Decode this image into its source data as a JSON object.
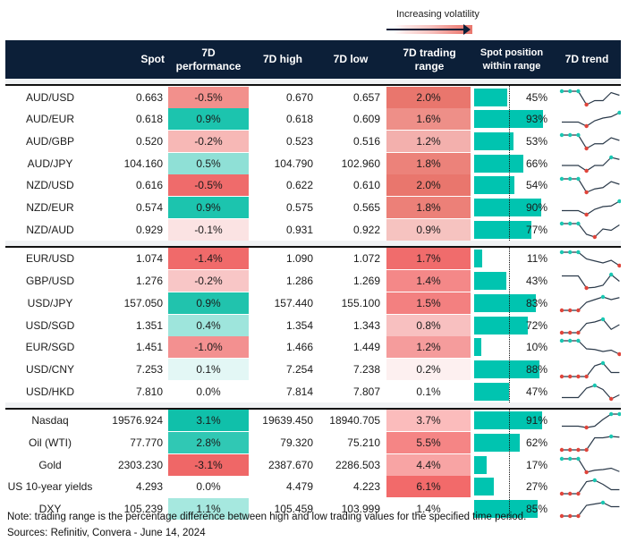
{
  "legend": {
    "label": "Increasing volatility"
  },
  "colors": {
    "header_bg": "#0c1f38",
    "bar": "#00c4b0",
    "max_marker": "#19c7b2",
    "min_marker": "#e0443a",
    "line": "#2b3a4a"
  },
  "columns": {
    "pair": "",
    "spot": "Spot",
    "perf": "7D performance",
    "high": "7D high",
    "low": "7D low",
    "range": "7D trading range",
    "position": "Spot position within range",
    "trend": "7D trend"
  },
  "groups": [
    {
      "rows": [
        {
          "name": "AUD/USD",
          "spot": "0.663",
          "perf": "-0.5%",
          "perf_color": "#f2908c",
          "high": "0.670",
          "low": "0.657",
          "range": "2.0%",
          "range_color": "#e9766d",
          "position": 45,
          "position_label": "45%",
          "trend": [
            1,
            1,
            1,
            0,
            0.3,
            0.3,
            0.9,
            0.7
          ]
        },
        {
          "name": "AUD/EUR",
          "spot": "0.618",
          "perf": "0.9%",
          "perf_color": "#1cc4ae",
          "high": "0.618",
          "low": "0.609",
          "range": "1.6%",
          "range_color": "#ee8f88",
          "position": 93,
          "position_label": "93%",
          "trend": [
            0.3,
            0.3,
            0.3,
            0,
            0.4,
            0.6,
            0.7,
            1
          ]
        },
        {
          "name": "AUD/GBP",
          "spot": "0.520",
          "perf": "-0.2%",
          "perf_color": "#f7b8b6",
          "high": "0.523",
          "low": "0.516",
          "range": "1.2%",
          "range_color": "#f3b0ad",
          "position": 53,
          "position_label": "53%",
          "trend": [
            1,
            1,
            1,
            0,
            0.35,
            0.35,
            0.8,
            0.6
          ]
        },
        {
          "name": "AUD/JPY",
          "spot": "104.160",
          "perf": "0.5%",
          "perf_color": "#8fe0d6",
          "high": "104.790",
          "low": "102.960",
          "range": "1.8%",
          "range_color": "#ec827a",
          "position": 66,
          "position_label": "66%",
          "trend": [
            0.4,
            0.4,
            0.4,
            0,
            0.4,
            0.4,
            1,
            0.85
          ]
        },
        {
          "name": "NZD/USD",
          "spot": "0.616",
          "perf": "-0.5%",
          "perf_color": "#ef6b6b",
          "high": "0.622",
          "low": "0.610",
          "range": "2.0%",
          "range_color": "#e9766d",
          "position": 54,
          "position_label": "54%",
          "trend": [
            1,
            1,
            1,
            0,
            0.25,
            0.35,
            0.8,
            0.6
          ]
        },
        {
          "name": "NZD/EUR",
          "spot": "0.574",
          "perf": "0.9%",
          "perf_color": "#1cc4ae",
          "high": "0.575",
          "low": "0.565",
          "range": "1.8%",
          "range_color": "#ec8078",
          "position": 90,
          "position_label": "90%",
          "trend": [
            0.3,
            0.3,
            0.3,
            0,
            0.4,
            0.6,
            0.65,
            1
          ]
        },
        {
          "name": "NZD/AUD",
          "spot": "0.929",
          "perf": "-0.1%",
          "perf_color": "#fbe3e3",
          "high": "0.931",
          "low": "0.922",
          "range": "0.9%",
          "range_color": "#f6c3c0",
          "position": 77,
          "position_label": "77%",
          "trend": [
            1,
            1,
            1,
            0.2,
            0,
            0.6,
            0.5,
            0.9
          ]
        }
      ]
    },
    {
      "rows": [
        {
          "name": "EUR/USD",
          "spot": "1.074",
          "perf": "-1.4%",
          "perf_color": "#f06a6a",
          "high": "1.090",
          "low": "1.072",
          "range": "1.7%",
          "range_color": "#f06c6c",
          "position": 11,
          "position_label": "11%",
          "trend": [
            1,
            1,
            1,
            0.5,
            0.35,
            0.2,
            0.4,
            0
          ]
        },
        {
          "name": "GBP/USD",
          "spot": "1.276",
          "perf": "-0.2%",
          "perf_color": "#f8c6c6",
          "high": "1.286",
          "low": "1.269",
          "range": "1.4%",
          "range_color": "#f48888",
          "position": 43,
          "position_label": "43%",
          "trend": [
            0.9,
            0.9,
            0.9,
            0,
            0.05,
            0.2,
            1,
            0.5
          ]
        },
        {
          "name": "USD/JPY",
          "spot": "157.050",
          "perf": "0.9%",
          "perf_color": "#21c3ad",
          "high": "157.440",
          "low": "155.100",
          "range": "1.5%",
          "range_color": "#f38080",
          "position": 83,
          "position_label": "83%",
          "trend": [
            0,
            0,
            0,
            0.6,
            0.8,
            1,
            0.8,
            0.95
          ]
        },
        {
          "name": "USD/SGD",
          "spot": "1.351",
          "perf": "0.4%",
          "perf_color": "#9ee5dc",
          "high": "1.354",
          "low": "1.343",
          "range": "0.8%",
          "range_color": "#f8c0c0",
          "position": 72,
          "position_label": "72%",
          "trend": [
            0,
            0,
            0,
            0.7,
            0.8,
            1,
            0.25,
            0.6
          ]
        },
        {
          "name": "EUR/SGD",
          "spot": "1.451",
          "perf": "-1.0%",
          "perf_color": "#f39090",
          "high": "1.466",
          "low": "1.449",
          "range": "1.2%",
          "range_color": "#f59c9c",
          "position": 10,
          "position_label": "10%",
          "trend": [
            1,
            1,
            1,
            0.4,
            0.35,
            0.2,
            0.3,
            0
          ]
        },
        {
          "name": "USD/CNY",
          "spot": "7.253",
          "perf": "0.1%",
          "perf_color": "#e3f7f5",
          "high": "7.254",
          "low": "7.238",
          "range": "0.2%",
          "range_color": "#fdf0f0",
          "position": 88,
          "position_label": "88%",
          "trend": [
            0,
            0,
            0,
            0,
            0.8,
            1,
            0.3,
            0.3
          ]
        },
        {
          "name": "USD/HKD",
          "spot": "7.810",
          "perf": "0.0%",
          "perf_color": "#ffffff",
          "high": "7.814",
          "low": "7.807",
          "range": "0.1%",
          "range_color": "#ffffff",
          "position": 47,
          "position_label": "47%",
          "trend": [
            0.1,
            0.1,
            0.1,
            0.8,
            1,
            0.7,
            0,
            0.3
          ]
        }
      ]
    },
    {
      "rows": [
        {
          "name": "Nasdaq",
          "spot": "19576.924",
          "perf": "3.1%",
          "perf_color": "#10c0aa",
          "high": "19639.450",
          "low": "18940.705",
          "range": "3.7%",
          "range_color": "#fbbcbc",
          "position": 91,
          "position_label": "91%",
          "trend": [
            0.1,
            0.1,
            0.1,
            0,
            0.1,
            0.6,
            1,
            1
          ]
        },
        {
          "name": "Oil (WTI)",
          "spot": "77.770",
          "perf": "2.8%",
          "perf_color": "#30c8b4",
          "high": "79.320",
          "low": "75.210",
          "range": "5.5%",
          "range_color": "#f58585",
          "position": 62,
          "position_label": "62%",
          "trend": [
            0,
            0,
            0,
            0,
            0.9,
            0.9,
            1,
            0.95
          ]
        },
        {
          "name": "Gold",
          "spot": "2303.230",
          "perf": "-3.1%",
          "perf_color": "#ef6767",
          "high": "2387.670",
          "low": "2286.503",
          "range": "4.4%",
          "range_color": "#f8a4a4",
          "position": 17,
          "position_label": "17%",
          "trend": [
            1,
            1,
            1,
            0,
            0.15,
            0.2,
            0.3,
            0.05
          ]
        },
        {
          "name": "US 10-year yields",
          "spot": "4.293",
          "perf": "0.0%",
          "perf_color": "#ffffff",
          "high": "4.479",
          "low": "4.223",
          "range": "6.1%",
          "range_color": "#f26a6a",
          "position": 27,
          "position_label": "27%",
          "trend": [
            0,
            0,
            0,
            0.9,
            1,
            0.7,
            0.3,
            0.3
          ]
        },
        {
          "name": "DXY",
          "spot": "105.239",
          "perf": "1.1%",
          "perf_color": "#a6e8df",
          "high": "105.459",
          "low": "103.999",
          "range": "1.4%",
          "range_color": "#ffffff",
          "position": 85,
          "position_label": "85%",
          "trend": [
            0,
            0,
            0,
            0.8,
            0.9,
            1,
            0.7,
            0.7
          ]
        }
      ]
    }
  ],
  "notes": {
    "note": "Note: trading range is the percentage difference between high and low trading values for the specified time period.",
    "sources": "Sources: Refinitiv, Convera - June 14, 2024"
  }
}
